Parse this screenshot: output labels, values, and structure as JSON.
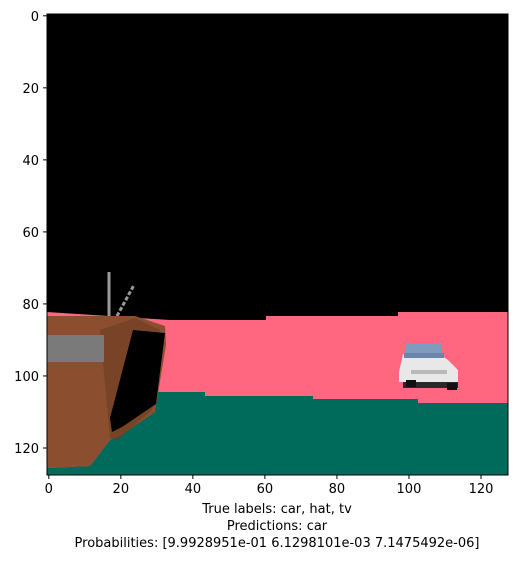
{
  "chart_data": {
    "type": "image",
    "image_size": [
      128,
      128
    ],
    "x_ticks": [
      0,
      20,
      40,
      60,
      80,
      100,
      120
    ],
    "y_ticks": [
      0,
      20,
      40,
      60,
      80,
      100,
      120
    ],
    "xlim": [
      -0.5,
      127.5
    ],
    "ylim": [
      127.5,
      -0.5
    ],
    "colors": {
      "sky": "#000000",
      "ground_pink": "#ff6680",
      "ground_green": "#006b5a",
      "tv_body": "#8b4e2f",
      "tv_screen": "#000000",
      "tv_panel": "#7a7a7a",
      "car_body": "#e8e8e8",
      "car_window": "#7f9bbd"
    }
  },
  "caption": {
    "true_labels": "True labels: car, hat, tv",
    "predictions": "Predictions: car",
    "probabilities": "Probabilities: [9.9928951e-01 6.1298101e-03 7.1475492e-06]"
  }
}
